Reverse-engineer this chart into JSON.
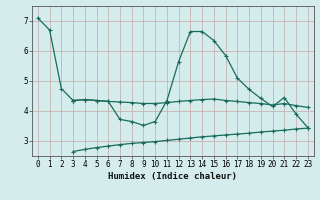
{
  "xlabel": "Humidex (Indice chaleur)",
  "bg_color": "#d4edec",
  "grid_color": "#c8a8a8",
  "line_color": "#1a6b5a",
  "xlim": [
    -0.5,
    23.5
  ],
  "ylim": [
    2.5,
    7.5
  ],
  "xticks": [
    0,
    1,
    2,
    3,
    4,
    5,
    6,
    7,
    8,
    9,
    10,
    11,
    12,
    13,
    14,
    15,
    16,
    17,
    18,
    19,
    20,
    21,
    22,
    23
  ],
  "yticks": [
    3,
    4,
    5,
    6,
    7
  ],
  "line1_x": [
    0,
    1,
    2,
    3
  ],
  "line1_y": [
    7.1,
    6.7,
    4.75,
    4.35
  ],
  "line2_x": [
    3,
    4,
    5,
    6,
    7,
    8,
    9,
    10,
    11,
    12,
    13,
    14,
    15,
    16,
    17,
    18,
    19,
    20,
    21,
    22,
    23
  ],
  "line2_y": [
    4.35,
    4.38,
    4.35,
    4.32,
    4.3,
    4.28,
    4.25,
    4.25,
    4.28,
    4.32,
    4.35,
    4.38,
    4.4,
    4.35,
    4.32,
    4.28,
    4.25,
    4.2,
    4.25,
    4.18,
    4.12
  ],
  "line3_x": [
    3,
    4,
    5,
    6,
    7,
    8,
    9,
    10,
    11,
    12,
    13,
    14,
    15,
    16,
    17,
    18,
    19,
    20,
    21,
    22,
    23
  ],
  "line3_y": [
    4.35,
    4.38,
    4.35,
    4.32,
    3.72,
    3.65,
    3.52,
    3.65,
    4.35,
    5.65,
    6.65,
    6.65,
    6.35,
    5.85,
    5.1,
    4.72,
    4.42,
    4.15,
    4.45,
    3.9,
    3.45
  ],
  "line4_x": [
    3,
    4,
    5,
    6,
    7,
    8,
    9,
    10,
    11,
    12,
    13,
    14,
    15,
    16,
    17,
    18,
    19,
    20,
    21,
    22,
    23
  ],
  "line4_y": [
    2.65,
    2.72,
    2.78,
    2.83,
    2.88,
    2.92,
    2.95,
    2.98,
    3.02,
    3.06,
    3.1,
    3.14,
    3.17,
    3.2,
    3.23,
    3.26,
    3.3,
    3.33,
    3.36,
    3.4,
    3.43
  ]
}
